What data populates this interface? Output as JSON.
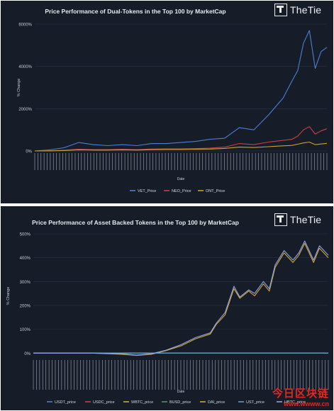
{
  "charts": [
    {
      "title": "Price Performance of Dual-Tokens in the Top 100 by MarketCap",
      "brand": "TheTie",
      "xlabel": "Date",
      "ylabel": "% Change"
    },
    {
      "title": "Price Performance of Asset Backed Tokens in the Top 100 by MarketCap",
      "brand": "TheTie",
      "xlabel": "Date",
      "ylabel": "% Change"
    }
  ],
  "chart_data": [
    {
      "type": "line",
      "title": "Price Performance of Dual-Tokens in the Top 100 by MarketCap",
      "xlabel": "Date",
      "ylabel": "% Change",
      "ylim": [
        0,
        6000
      ],
      "yticks": [
        0,
        2000,
        4000,
        6000
      ],
      "ytick_labels": [
        "0%",
        "2000%",
        "4000%",
        "6000%"
      ],
      "legend_position": "bottom",
      "x": [
        0,
        5,
        10,
        15,
        20,
        25,
        30,
        35,
        40,
        45,
        50,
        55,
        60,
        65,
        70,
        75,
        80,
        85,
        88,
        90,
        92,
        94,
        96,
        98,
        100
      ],
      "series": [
        {
          "name": "VET_Price",
          "color": "#4a7fd4",
          "values": [
            0,
            50,
            150,
            400,
            300,
            250,
            300,
            250,
            350,
            350,
            400,
            450,
            550,
            600,
            1100,
            1000,
            1700,
            2500,
            3300,
            3800,
            5100,
            5700,
            3900,
            4700,
            4900
          ]
        },
        {
          "name": "NEO_Price",
          "color": "#c74040",
          "values": [
            0,
            10,
            30,
            80,
            60,
            60,
            80,
            60,
            90,
            100,
            100,
            110,
            130,
            180,
            350,
            300,
            420,
            500,
            550,
            700,
            1000,
            1150,
            800,
            950,
            1050
          ]
        },
        {
          "name": "ONT_Price",
          "color": "#c9a227",
          "values": [
            0,
            5,
            20,
            50,
            40,
            40,
            50,
            40,
            60,
            70,
            70,
            80,
            90,
            120,
            180,
            160,
            200,
            240,
            260,
            320,
            380,
            420,
            300,
            330,
            360
          ]
        }
      ]
    },
    {
      "type": "line",
      "title": "Price Performance of Asset Backed Tokens in the Top 100 by MarketCap",
      "xlabel": "Date",
      "ylabel": "% Change",
      "ylim": [
        -20,
        500
      ],
      "yticks": [
        0,
        100,
        200,
        300,
        400,
        500
      ],
      "ytick_labels": [
        "0%",
        "100%",
        "200%",
        "300%",
        "400%",
        "500%"
      ],
      "legend_position": "bottom",
      "x": [
        0,
        10,
        20,
        30,
        35,
        40,
        45,
        50,
        55,
        60,
        62,
        65,
        68,
        70,
        73,
        75,
        78,
        80,
        82,
        85,
        88,
        90,
        92,
        95,
        97,
        100
      ],
      "series": [
        {
          "name": "USDT_price",
          "color": "#4a7fd4",
          "values": [
            0,
            0,
            0,
            0,
            0,
            0,
            0,
            0,
            0,
            0,
            0,
            0,
            0,
            0,
            0,
            0,
            0,
            0,
            0,
            0,
            0,
            0,
            0,
            0,
            0,
            0
          ]
        },
        {
          "name": "USDC_price",
          "color": "#c74040",
          "values": [
            0,
            0,
            0,
            0,
            0,
            0,
            0,
            0,
            0,
            0,
            0,
            0,
            0,
            0,
            0,
            0,
            0,
            0,
            0,
            0,
            0,
            0,
            0,
            0,
            0,
            0
          ]
        },
        {
          "name": "WBTC_price",
          "color": "#d9a23a",
          "values": [
            0,
            0,
            0,
            -5,
            -10,
            -5,
            10,
            30,
            60,
            80,
            120,
            160,
            270,
            230,
            260,
            240,
            290,
            260,
            360,
            420,
            380,
            410,
            460,
            380,
            440,
            400
          ]
        },
        {
          "name": "BUSD_price",
          "color": "#3a9e5c",
          "values": [
            0,
            0,
            0,
            0,
            0,
            0,
            0,
            0,
            0,
            0,
            0,
            0,
            0,
            0,
            0,
            0,
            0,
            0,
            0,
            0,
            0,
            0,
            0,
            0,
            0,
            0
          ]
        },
        {
          "name": "DAI_price",
          "color": "#e0a030",
          "values": [
            0,
            0,
            0,
            0,
            0,
            0,
            0,
            0,
            0,
            0,
            0,
            0,
            0,
            0,
            0,
            0,
            0,
            0,
            0,
            0,
            0,
            0,
            0,
            0,
            0,
            0
          ]
        },
        {
          "name": "UST_price",
          "color": "#5aa0c8",
          "values": [
            0,
            0,
            0,
            0,
            0,
            0,
            0,
            0,
            0,
            0,
            0,
            0,
            0,
            0,
            0,
            0,
            0,
            0,
            0,
            0,
            0,
            0,
            0,
            0,
            0,
            0
          ]
        },
        {
          "name": "HBTC_price",
          "color": "#8aa6e8",
          "values": [
            0,
            0,
            0,
            -3,
            -8,
            -3,
            12,
            35,
            65,
            85,
            125,
            170,
            280,
            235,
            265,
            250,
            300,
            270,
            370,
            430,
            390,
            420,
            470,
            390,
            450,
            410
          ]
        }
      ]
    }
  ],
  "watermark": {
    "text": "今日区块链",
    "url": "www.wwww.cn"
  }
}
